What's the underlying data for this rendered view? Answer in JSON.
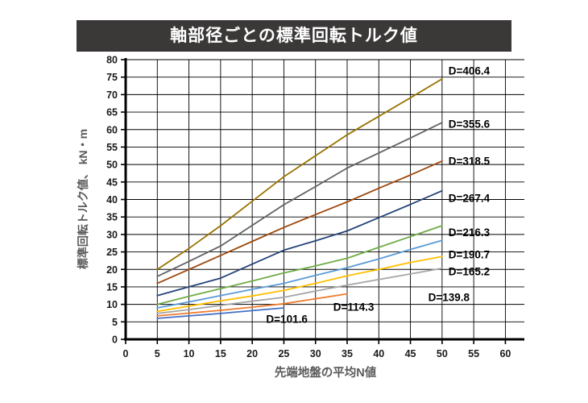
{
  "title_bar": {
    "text": "軸部径ごとの標準回転トルク値",
    "bg_color": "#3B3838",
    "text_color": "#FFFFFF"
  },
  "chart_data": {
    "type": "line",
    "title": "軸部径ごとの標準回転トルク値",
    "xlabel": "先端地盤の平均N値",
    "ylabel": "標準回転トルク値、 kN・m",
    "xlim": [
      0,
      63
    ],
    "ylim": [
      0,
      80
    ],
    "x_ticks": [
      0,
      5,
      10,
      15,
      20,
      25,
      30,
      35,
      40,
      45,
      50,
      55,
      60
    ],
    "y_ticks": [
      0,
      5,
      10,
      15,
      20,
      25,
      30,
      35,
      40,
      45,
      50,
      55,
      60,
      65,
      70,
      75,
      80
    ],
    "grid": true,
    "grid_color": "#000000",
    "axis_color": "#000000",
    "tick_label_color": "#1a1a1a",
    "series_label_color": "#000000",
    "legend_position": "inline-labels",
    "series": [
      {
        "name": "D=101.6",
        "color": "#4472C4",
        "label": {
          "text": "D=101.6",
          "n": 22.2,
          "v": 5.8
        },
        "points": [
          [
            5,
            6.0
          ],
          [
            10,
            6.7
          ],
          [
            15,
            7.4
          ],
          [
            20,
            8.2
          ],
          [
            25,
            9.0
          ]
        ]
      },
      {
        "name": "D=114.3",
        "color": "#ED7D31",
        "label": {
          "text": "D=114.3",
          "n": 32.8,
          "v": 9.2
        },
        "points": [
          [
            5,
            6.7
          ],
          [
            10,
            7.5
          ],
          [
            15,
            8.3
          ],
          [
            20,
            9.2
          ],
          [
            25,
            10.2
          ],
          [
            30,
            11.6
          ],
          [
            35,
            13.0
          ]
        ]
      },
      {
        "name": "D=139.8",
        "color": "#A5A5A5",
        "label": {
          "text": "D=139.8",
          "n": 47.8,
          "v": 12.0
        },
        "points": [
          [
            5,
            7.4
          ],
          [
            10,
            8.5
          ],
          [
            15,
            9.7
          ],
          [
            20,
            10.9
          ],
          [
            25,
            12.0
          ],
          [
            30,
            13.8
          ],
          [
            35,
            15.5
          ],
          [
            40,
            17.1
          ],
          [
            45,
            18.7
          ],
          [
            50,
            20.3
          ]
        ]
      },
      {
        "name": "D=165.2",
        "color": "#FFC000",
        "label": {
          "text": "D=165.2",
          "n": 51,
          "v": 19.4
        },
        "points": [
          [
            5,
            8.0
          ],
          [
            10,
            9.5
          ],
          [
            15,
            11.0
          ],
          [
            20,
            12.4
          ],
          [
            25,
            14.0
          ],
          [
            30,
            16.0
          ],
          [
            35,
            18.2
          ],
          [
            40,
            20.0
          ],
          [
            45,
            22.0
          ],
          [
            50,
            23.7
          ]
        ]
      },
      {
        "name": "D=190.7",
        "color": "#5B9BD5",
        "label": {
          "text": "D=190.7",
          "n": 51,
          "v": 24.2
        },
        "points": [
          [
            5,
            9.0
          ],
          [
            10,
            10.7
          ],
          [
            15,
            12.5
          ],
          [
            20,
            14.3
          ],
          [
            25,
            16.0
          ],
          [
            30,
            18.3
          ],
          [
            35,
            20.5
          ],
          [
            40,
            23.0
          ],
          [
            45,
            25.7
          ],
          [
            50,
            28.3
          ]
        ]
      },
      {
        "name": "D=216.3",
        "color": "#70AD47",
        "label": {
          "text": "D=216.3",
          "n": 51,
          "v": 30.6
        },
        "points": [
          [
            5,
            10.0
          ],
          [
            10,
            12.3
          ],
          [
            15,
            14.5
          ],
          [
            20,
            16.7
          ],
          [
            25,
            19.0
          ],
          [
            30,
            21.0
          ],
          [
            35,
            23.2
          ],
          [
            40,
            26.3
          ],
          [
            45,
            29.4
          ],
          [
            50,
            32.5
          ]
        ]
      },
      {
        "name": "D=267.4",
        "color": "#264478",
        "label": {
          "text": "D=267.4",
          "n": 51,
          "v": 40.3
        },
        "points": [
          [
            5,
            12.5
          ],
          [
            10,
            15.0
          ],
          [
            15,
            17.5
          ],
          [
            20,
            21.5
          ],
          [
            25,
            25.5
          ],
          [
            30,
            28.2
          ],
          [
            35,
            31.0
          ],
          [
            40,
            34.8
          ],
          [
            45,
            38.6
          ],
          [
            50,
            42.5
          ]
        ]
      },
      {
        "name": "D=318.5",
        "color": "#9E480E",
        "label": {
          "text": "D=318.5",
          "n": 51,
          "v": 51.0
        },
        "points": [
          [
            5,
            16.0
          ],
          [
            10,
            20.0
          ],
          [
            15,
            24.0
          ],
          [
            20,
            28.0
          ],
          [
            25,
            32.0
          ],
          [
            30,
            35.7
          ],
          [
            35,
            39.3
          ],
          [
            40,
            43.2
          ],
          [
            45,
            47.0
          ],
          [
            50,
            51.0
          ]
        ]
      },
      {
        "name": "D=355.6",
        "color": "#636363",
        "label": {
          "text": "D=355.6",
          "n": 51,
          "v": 61.5
        },
        "points": [
          [
            5,
            18.0
          ],
          [
            10,
            22.3
          ],
          [
            15,
            26.7
          ],
          [
            20,
            32.6
          ],
          [
            25,
            38.5
          ],
          [
            30,
            43.7
          ],
          [
            35,
            49.0
          ],
          [
            40,
            53.3
          ],
          [
            45,
            57.6
          ],
          [
            50,
            62.0
          ]
        ]
      },
      {
        "name": "D=406.4",
        "color": "#997300",
        "label": {
          "text": "D=406.4",
          "n": 51,
          "v": 76.8
        },
        "points": [
          [
            5,
            20.0
          ],
          [
            10,
            26.0
          ],
          [
            15,
            32.5
          ],
          [
            20,
            39.5
          ],
          [
            25,
            46.5
          ],
          [
            30,
            52.5
          ],
          [
            35,
            58.5
          ],
          [
            40,
            63.8
          ],
          [
            45,
            69.1
          ],
          [
            50,
            74.5
          ]
        ]
      }
    ]
  }
}
